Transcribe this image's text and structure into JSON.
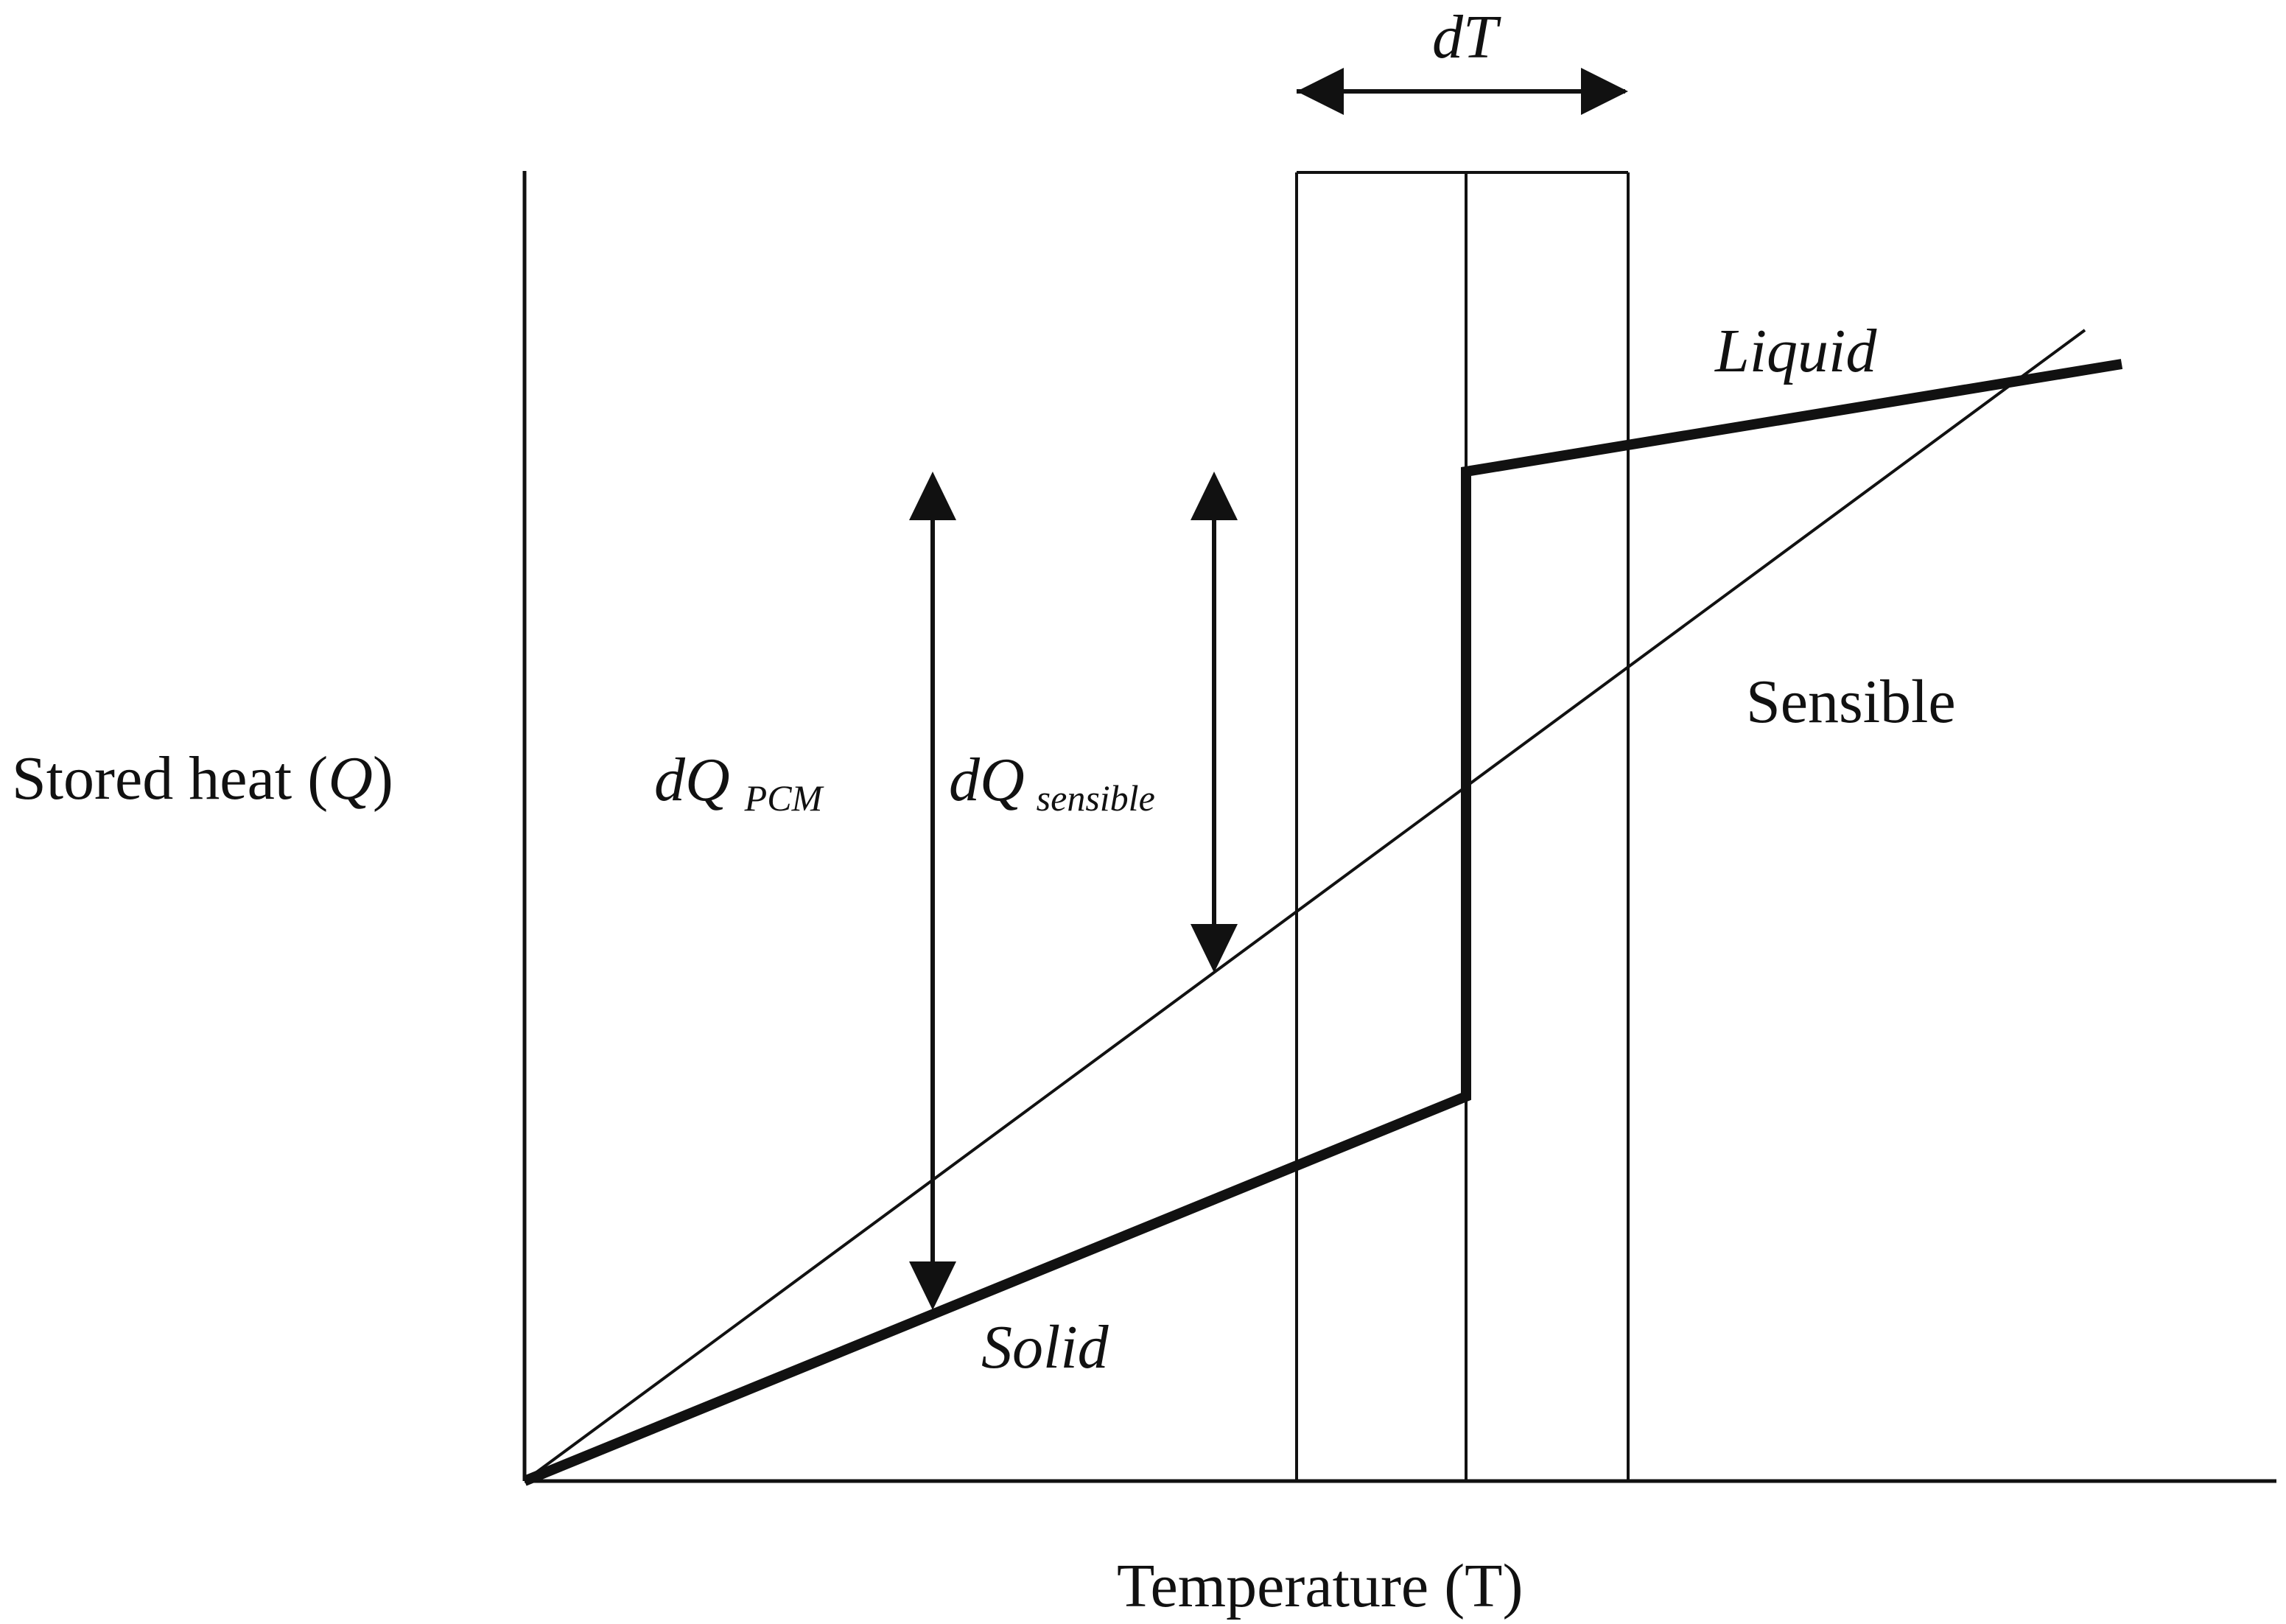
{
  "labels": {
    "y_axis_text": "Stored heat (",
    "y_axis_symbol": "Q",
    "y_axis_close": ")",
    "x_axis": "Temperature (T)",
    "dT": "dT",
    "dQ_pcm_main": "dQ",
    "dQ_pcm_sub": "PCM",
    "dQ_sensible_main": "dQ",
    "dQ_sensible_sub": "sensible",
    "liquid": "Liquid",
    "solid": "Solid",
    "sensible": "Sensible"
  },
  "colors": {
    "ink": "#111111",
    "background": "#ffffff"
  }
}
